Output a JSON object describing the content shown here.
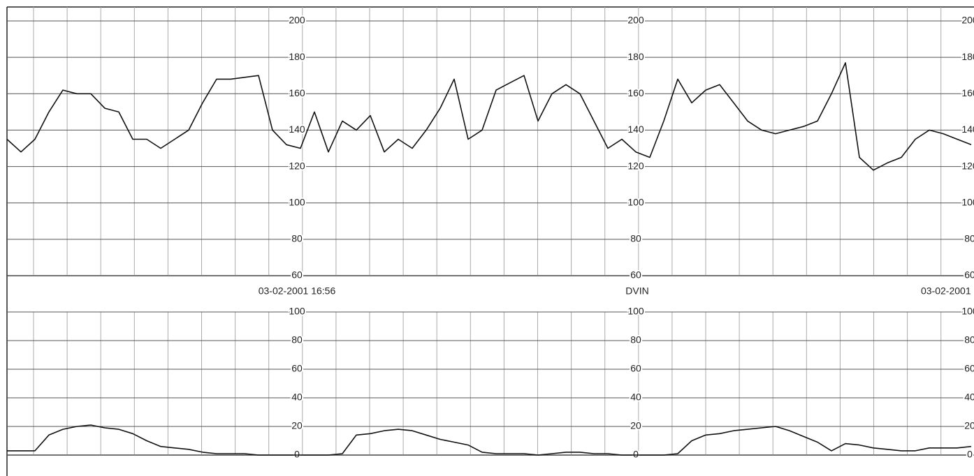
{
  "chart_data": [
    {
      "type": "line",
      "color": "#111111",
      "grid": true,
      "annotations": [
        "03-02-2001 16:56",
        "DVIN"
      ],
      "x": [
        0,
        1,
        2,
        3,
        4,
        5,
        6,
        7,
        8,
        9,
        10,
        11,
        12,
        13,
        14,
        15,
        16,
        17,
        18,
        19,
        20,
        21,
        22,
        23,
        24,
        25,
        26,
        27,
        28,
        29,
        30,
        31,
        32,
        33,
        34,
        35,
        36,
        37,
        38,
        39,
        40,
        41,
        42,
        43,
        44,
        45,
        46,
        47,
        48,
        49,
        50,
        51,
        52,
        53,
        54,
        55,
        56,
        57,
        58,
        59,
        60,
        61,
        62,
        63,
        64,
        65,
        66,
        67,
        68,
        69
      ],
      "xlim": [
        0,
        69
      ],
      "values": [
        135,
        128,
        135,
        150,
        162,
        160,
        160,
        152,
        150,
        135,
        135,
        130,
        135,
        140,
        155,
        168,
        168,
        169,
        170,
        140,
        132,
        130,
        150,
        128,
        145,
        140,
        148,
        128,
        135,
        130,
        140,
        152,
        168,
        135,
        140,
        162,
        166,
        170,
        145,
        160,
        165,
        160,
        145,
        130,
        135,
        128,
        125,
        145,
        168,
        155,
        162,
        165,
        155,
        145,
        140,
        138,
        140,
        142,
        145,
        160,
        177,
        125,
        118,
        122,
        125,
        135,
        140,
        138,
        135,
        132
      ],
      "ylim": [
        60,
        200
      ],
      "yticks": [
        60,
        80,
        100,
        120,
        140,
        160,
        180,
        200
      ]
    },
    {
      "type": "line",
      "color": "#111111",
      "grid": true,
      "x": [
        0,
        1,
        2,
        3,
        4,
        5,
        6,
        7,
        8,
        9,
        10,
        11,
        12,
        13,
        14,
        15,
        16,
        17,
        18,
        19,
        20,
        21,
        22,
        23,
        24,
        25,
        26,
        27,
        28,
        29,
        30,
        31,
        32,
        33,
        34,
        35,
        36,
        37,
        38,
        39,
        40,
        41,
        42,
        43,
        44,
        45,
        46,
        47,
        48,
        49,
        50,
        51,
        52,
        53,
        54,
        55,
        56,
        57,
        58,
        59,
        60,
        61,
        62,
        63,
        64,
        65,
        66,
        67,
        68,
        69
      ],
      "xlim": [
        0,
        69
      ],
      "values": [
        3,
        3,
        3,
        14,
        18,
        20,
        21,
        19,
        18,
        15,
        10,
        6,
        5,
        4,
        2,
        1,
        1,
        1,
        0,
        0,
        0,
        0,
        0,
        0,
        1,
        14,
        15,
        17,
        18,
        17,
        14,
        11,
        9,
        7,
        2,
        1,
        1,
        1,
        0,
        1,
        2,
        2,
        1,
        1,
        0,
        0,
        0,
        0,
        1,
        10,
        14,
        15,
        17,
        18,
        19,
        20,
        17,
        13,
        9,
        3,
        8,
        7,
        5,
        4,
        3,
        3,
        5,
        5,
        5,
        6
      ],
      "ylim": [
        0,
        100
      ],
      "yticks": [
        0,
        20,
        40,
        60,
        80,
        100
      ]
    }
  ]
}
